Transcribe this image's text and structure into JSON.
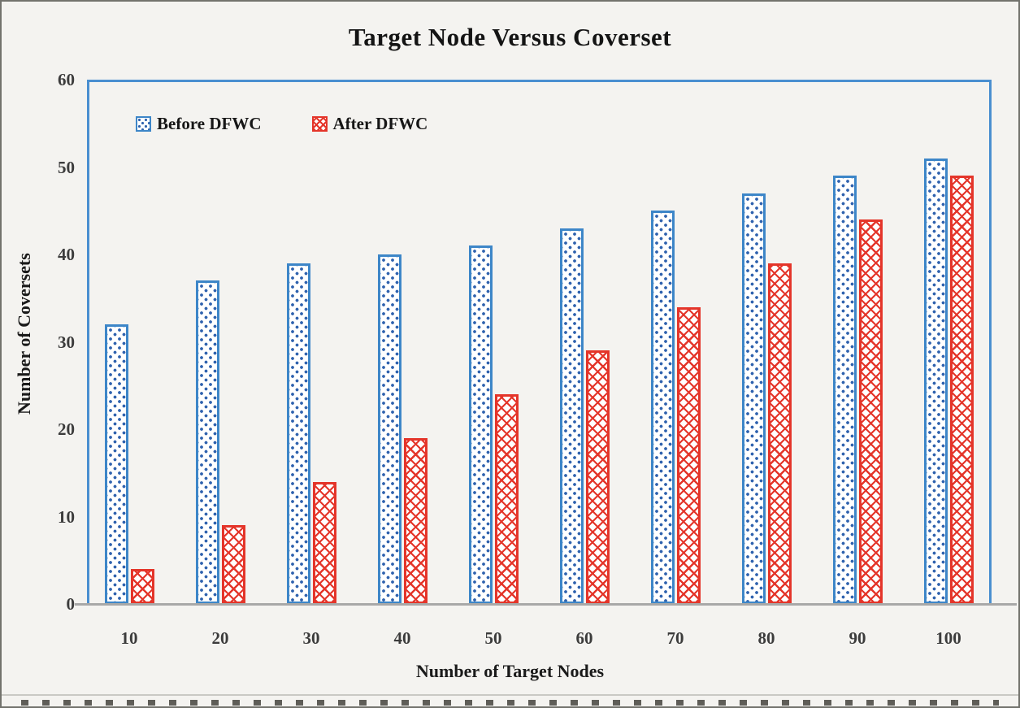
{
  "chart_data": {
    "type": "bar",
    "title": "Target Node Versus Coverset",
    "xlabel": "Number of Target Nodes",
    "ylabel": "Number of Coversets",
    "categories": [
      "10",
      "20",
      "30",
      "40",
      "50",
      "60",
      "70",
      "80",
      "90",
      "100"
    ],
    "series": [
      {
        "name": "Before DFWC",
        "pattern": "dots",
        "color": "#3d86c8",
        "values": [
          32,
          37,
          39,
          40,
          41,
          43,
          45,
          47,
          49,
          51
        ]
      },
      {
        "name": "After DFWC",
        "pattern": "weave",
        "color": "#e4352a",
        "values": [
          4,
          9,
          14,
          19,
          24,
          29,
          34,
          39,
          44,
          49
        ]
      }
    ],
    "ylim": [
      0,
      60
    ],
    "yticks": [
      0,
      10,
      20,
      30,
      40,
      50,
      60
    ],
    "grid": false,
    "legend_position": "top-left-inside"
  },
  "colors": {
    "frame_blue": "#4a8fd0",
    "series_blue": "#3d86c8",
    "dot_blue": "#2f62ae",
    "series_red": "#e4352a",
    "axis_gray": "#a8a8a8",
    "background": "#f4f3f0"
  }
}
